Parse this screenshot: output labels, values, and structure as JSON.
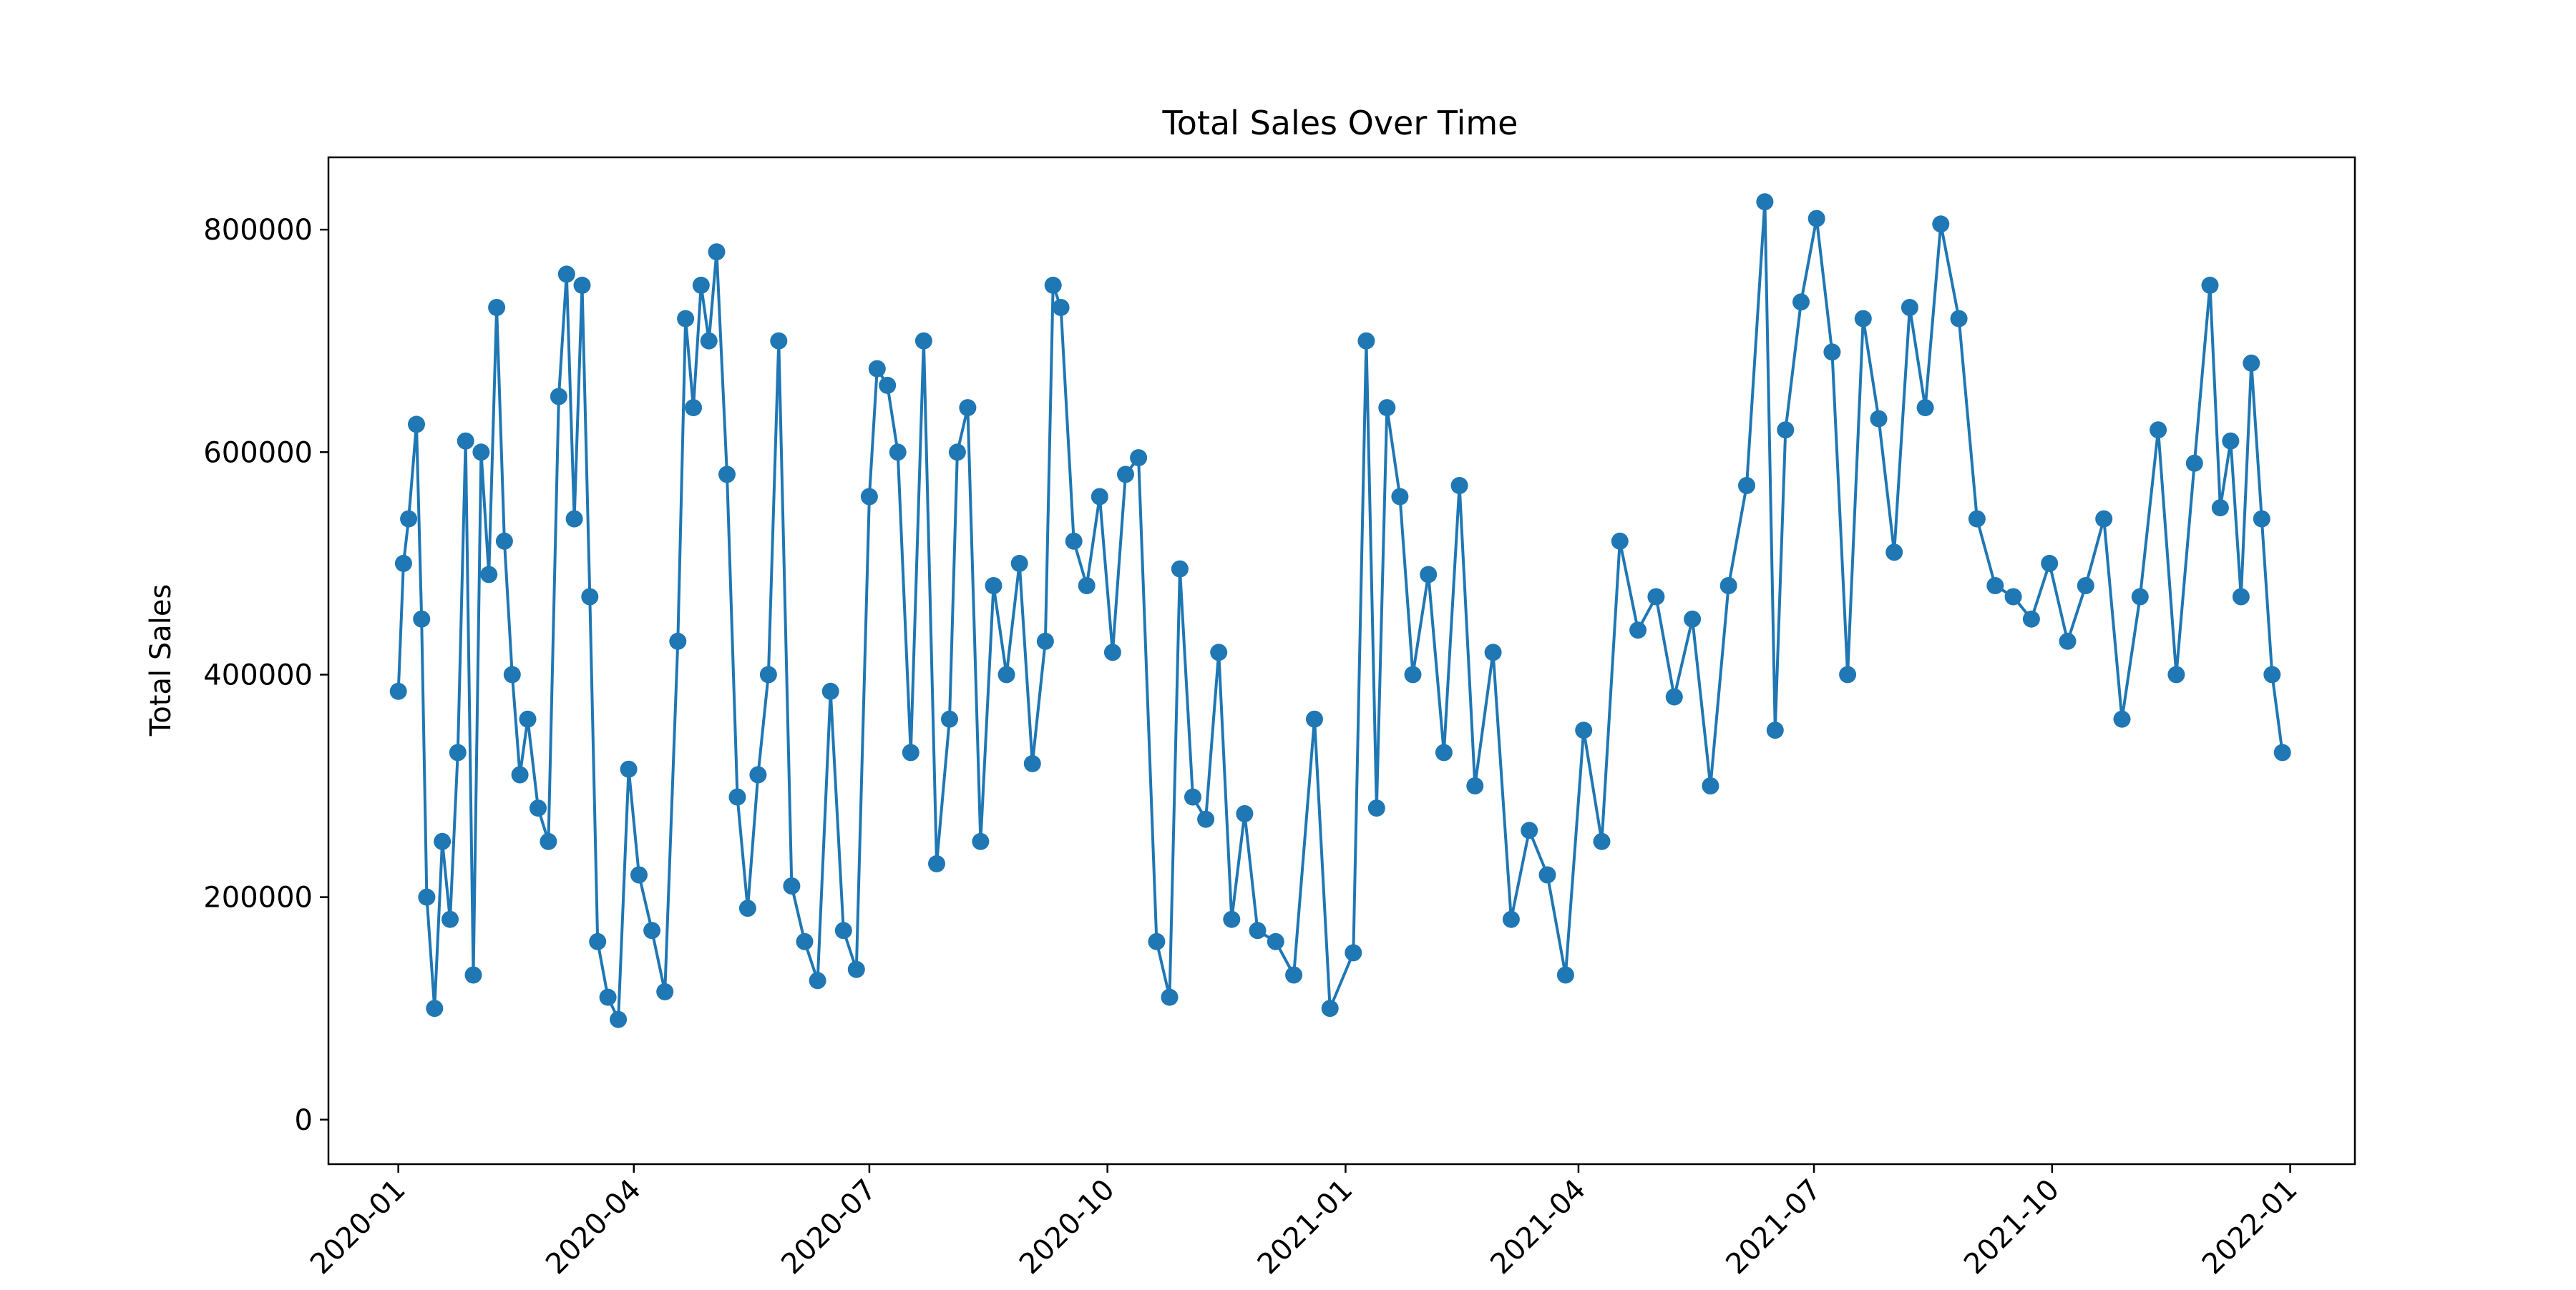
{
  "chart_data": {
    "type": "line",
    "title": "Total Sales Over Time",
    "xlabel": "",
    "ylabel": "Total Sales",
    "x_is_date": true,
    "xlim": [
      "2019-12-05",
      "2022-01-26"
    ],
    "ylim": [
      -40000,
      865000
    ],
    "xticks": [
      "2020-01",
      "2020-04",
      "2020-07",
      "2020-10",
      "2021-01",
      "2021-04",
      "2021-07",
      "2021-10",
      "2022-01"
    ],
    "yticks": [
      0,
      200000,
      400000,
      600000,
      800000
    ],
    "grid": false,
    "legend": "none",
    "colors": {
      "series": "#1f77b4"
    },
    "series": [
      {
        "marker": "circle",
        "x": [
          "2020-01-01",
          "2020-01-03",
          "2020-01-05",
          "2020-01-08",
          "2020-01-10",
          "2020-01-12",
          "2020-01-15",
          "2020-01-18",
          "2020-01-21",
          "2020-01-24",
          "2020-01-27",
          "2020-01-30",
          "2020-02-02",
          "2020-02-05",
          "2020-02-08",
          "2020-02-11",
          "2020-02-14",
          "2020-02-17",
          "2020-02-20",
          "2020-02-24",
          "2020-02-28",
          "2020-03-03",
          "2020-03-06",
          "2020-03-09",
          "2020-03-12",
          "2020-03-15",
          "2020-03-18",
          "2020-03-22",
          "2020-03-26",
          "2020-03-30",
          "2020-04-03",
          "2020-04-08",
          "2020-04-13",
          "2020-04-18",
          "2020-04-21",
          "2020-04-24",
          "2020-04-27",
          "2020-04-30",
          "2020-05-03",
          "2020-05-07",
          "2020-05-11",
          "2020-05-15",
          "2020-05-19",
          "2020-05-23",
          "2020-05-27",
          "2020-06-01",
          "2020-06-06",
          "2020-06-11",
          "2020-06-16",
          "2020-06-21",
          "2020-06-26",
          "2020-07-01",
          "2020-07-04",
          "2020-07-08",
          "2020-07-12",
          "2020-07-17",
          "2020-07-22",
          "2020-07-27",
          "2020-08-01",
          "2020-08-04",
          "2020-08-08",
          "2020-08-13",
          "2020-08-18",
          "2020-08-23",
          "2020-08-28",
          "2020-09-02",
          "2020-09-07",
          "2020-09-10",
          "2020-09-13",
          "2020-09-18",
          "2020-09-23",
          "2020-09-28",
          "2020-10-03",
          "2020-10-08",
          "2020-10-13",
          "2020-10-20",
          "2020-10-25",
          "2020-10-29",
          "2020-11-03",
          "2020-11-08",
          "2020-11-13",
          "2020-11-18",
          "2020-11-23",
          "2020-11-28",
          "2020-12-05",
          "2020-12-12",
          "2020-12-20",
          "2020-12-26",
          "2021-01-04",
          "2021-01-09",
          "2021-01-13",
          "2021-01-17",
          "2021-01-22",
          "2021-01-27",
          "2021-02-02",
          "2021-02-08",
          "2021-02-14",
          "2021-02-20",
          "2021-02-27",
          "2021-03-06",
          "2021-03-13",
          "2021-03-20",
          "2021-03-27",
          "2021-04-03",
          "2021-04-10",
          "2021-04-17",
          "2021-04-24",
          "2021-05-01",
          "2021-05-08",
          "2021-05-15",
          "2021-05-22",
          "2021-05-29",
          "2021-06-05",
          "2021-06-12",
          "2021-06-16",
          "2021-06-20",
          "2021-06-26",
          "2021-07-02",
          "2021-07-08",
          "2021-07-14",
          "2021-07-20",
          "2021-07-26",
          "2021-08-01",
          "2021-08-07",
          "2021-08-13",
          "2021-08-19",
          "2021-08-26",
          "2021-09-02",
          "2021-09-09",
          "2021-09-16",
          "2021-09-23",
          "2021-09-30",
          "2021-10-07",
          "2021-10-14",
          "2021-10-21",
          "2021-10-28",
          "2021-11-04",
          "2021-11-11",
          "2021-11-18",
          "2021-11-25",
          "2021-12-01",
          "2021-12-05",
          "2021-12-09",
          "2021-12-13",
          "2021-12-17",
          "2021-12-21",
          "2021-12-25",
          "2021-12-29"
        ],
        "y": [
          385000,
          500000,
          540000,
          625000,
          450000,
          200000,
          100000,
          250000,
          180000,
          330000,
          610000,
          130000,
          600000,
          490000,
          730000,
          520000,
          400000,
          310000,
          360000,
          280000,
          250000,
          650000,
          760000,
          540000,
          750000,
          470000,
          160000,
          110000,
          90000,
          315000,
          220000,
          170000,
          115000,
          430000,
          720000,
          640000,
          750000,
          700000,
          780000,
          580000,
          290000,
          190000,
          310000,
          400000,
          700000,
          210000,
          160000,
          125000,
          385000,
          170000,
          135000,
          560000,
          675000,
          660000,
          600000,
          330000,
          700000,
          230000,
          360000,
          600000,
          640000,
          250000,
          480000,
          400000,
          500000,
          320000,
          430000,
          750000,
          730000,
          520000,
          480000,
          560000,
          420000,
          580000,
          595000,
          160000,
          110000,
          495000,
          290000,
          270000,
          420000,
          180000,
          275000,
          170000,
          160000,
          130000,
          360000,
          100000,
          150000,
          700000,
          280000,
          640000,
          560000,
          400000,
          490000,
          330000,
          570000,
          300000,
          420000,
          180000,
          260000,
          220000,
          130000,
          350000,
          250000,
          520000,
          440000,
          470000,
          380000,
          450000,
          300000,
          480000,
          570000,
          825000,
          350000,
          620000,
          735000,
          810000,
          690000,
          400000,
          720000,
          630000,
          510000,
          730000,
          640000,
          805000,
          720000,
          540000,
          480000,
          470000,
          450000,
          500000,
          430000,
          480000,
          540000,
          360000,
          470000,
          620000,
          400000,
          590000,
          750000,
          550000,
          610000,
          470000,
          680000,
          540000,
          400000,
          330000
        ]
      }
    ]
  }
}
